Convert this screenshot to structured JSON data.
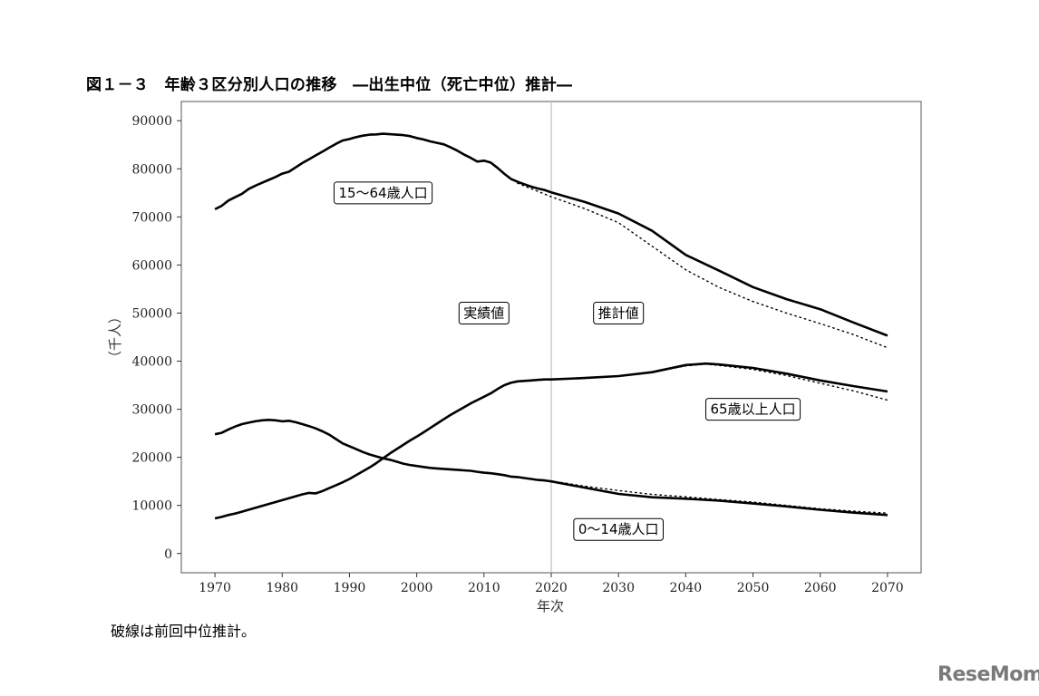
{
  "title": "図１－３　年齢３区分別人口の推移　―出生中位（死亡中位）推計―",
  "footnote": "破線は前回中位推計。",
  "logo_text": "ReseMom",
  "chart_data": {
    "type": "line",
    "xlabel": "年次",
    "ylabel": "（千人）",
    "xlim": [
      1965,
      2075
    ],
    "ylim": [
      -4000,
      94000
    ],
    "x_ticks": [
      1970,
      1980,
      1990,
      2000,
      2010,
      2020,
      2030,
      2040,
      2050,
      2060,
      2070
    ],
    "y_ticks": [
      0,
      10000,
      20000,
      30000,
      40000,
      50000,
      60000,
      70000,
      80000,
      90000
    ],
    "vline_x": 2020,
    "grid": false,
    "region_labels": [
      {
        "text": "実績値",
        "x": 2010,
        "y": 50000
      },
      {
        "text": "推計値",
        "x": 2030,
        "y": 50000
      }
    ],
    "series": [
      {
        "name": "15～64歳人口",
        "style": "solid",
        "label_pos": {
          "x": 1995,
          "y": 75000
        },
        "points": [
          [
            1970,
            71600
          ],
          [
            1971,
            72300
          ],
          [
            1972,
            73400
          ],
          [
            1973,
            74100
          ],
          [
            1974,
            74800
          ],
          [
            1975,
            75800
          ],
          [
            1976,
            76500
          ],
          [
            1977,
            77100
          ],
          [
            1978,
            77700
          ],
          [
            1979,
            78300
          ],
          [
            1980,
            79000
          ],
          [
            1981,
            79400
          ],
          [
            1982,
            80300
          ],
          [
            1983,
            81200
          ],
          [
            1984,
            82000
          ],
          [
            1985,
            82800
          ],
          [
            1986,
            83600
          ],
          [
            1987,
            84400
          ],
          [
            1988,
            85200
          ],
          [
            1989,
            85900
          ],
          [
            1990,
            86200
          ],
          [
            1991,
            86600
          ],
          [
            1992,
            86900
          ],
          [
            1993,
            87100
          ],
          [
            1994,
            87150
          ],
          [
            1995,
            87300
          ],
          [
            1996,
            87200
          ],
          [
            1997,
            87100
          ],
          [
            1998,
            87000
          ],
          [
            1999,
            86800
          ],
          [
            2000,
            86400
          ],
          [
            2001,
            86100
          ],
          [
            2002,
            85700
          ],
          [
            2003,
            85400
          ],
          [
            2004,
            85100
          ],
          [
            2005,
            84500
          ],
          [
            2006,
            83800
          ],
          [
            2007,
            83000
          ],
          [
            2008,
            82300
          ],
          [
            2009,
            81500
          ],
          [
            2010,
            81700
          ],
          [
            2011,
            81300
          ],
          [
            2012,
            80200
          ],
          [
            2013,
            79000
          ],
          [
            2014,
            77900
          ],
          [
            2015,
            77300
          ],
          [
            2016,
            76800
          ],
          [
            2017,
            76300
          ],
          [
            2018,
            75900
          ],
          [
            2019,
            75600
          ],
          [
            2020,
            75100
          ],
          [
            2025,
            73100
          ],
          [
            2030,
            70700
          ],
          [
            2035,
            67100
          ],
          [
            2040,
            62100
          ],
          [
            2045,
            58800
          ],
          [
            2050,
            55400
          ],
          [
            2055,
            52900
          ],
          [
            2060,
            50800
          ],
          [
            2065,
            48000
          ],
          [
            2070,
            45300
          ]
        ]
      },
      {
        "name": "65歳以上人口",
        "style": "solid",
        "label_pos": {
          "x": 2050,
          "y": 30000
        },
        "points": [
          [
            1970,
            7300
          ],
          [
            1971,
            7600
          ],
          [
            1972,
            8000
          ],
          [
            1973,
            8300
          ],
          [
            1974,
            8700
          ],
          [
            1975,
            9100
          ],
          [
            1976,
            9500
          ],
          [
            1977,
            9900
          ],
          [
            1978,
            10300
          ],
          [
            1979,
            10700
          ],
          [
            1980,
            11100
          ],
          [
            1981,
            11500
          ],
          [
            1982,
            11900
          ],
          [
            1983,
            12300
          ],
          [
            1984,
            12600
          ],
          [
            1985,
            12500
          ],
          [
            1986,
            13000
          ],
          [
            1987,
            13600
          ],
          [
            1988,
            14200
          ],
          [
            1989,
            14800
          ],
          [
            1990,
            15500
          ],
          [
            1991,
            16300
          ],
          [
            1992,
            17100
          ],
          [
            1993,
            17900
          ],
          [
            1994,
            18800
          ],
          [
            1995,
            19800
          ],
          [
            1996,
            20800
          ],
          [
            1997,
            21700
          ],
          [
            1998,
            22600
          ],
          [
            1999,
            23500
          ],
          [
            2000,
            24300
          ],
          [
            2001,
            25200
          ],
          [
            2002,
            26100
          ],
          [
            2003,
            27000
          ],
          [
            2004,
            27900
          ],
          [
            2005,
            28800
          ],
          [
            2006,
            29600
          ],
          [
            2007,
            30400
          ],
          [
            2008,
            31200
          ],
          [
            2009,
            31900
          ],
          [
            2010,
            32600
          ],
          [
            2011,
            33300
          ],
          [
            2012,
            34200
          ],
          [
            2013,
            35000
          ],
          [
            2014,
            35500
          ],
          [
            2015,
            35800
          ],
          [
            2016,
            35900
          ],
          [
            2017,
            36000
          ],
          [
            2018,
            36100
          ],
          [
            2019,
            36200
          ],
          [
            2020,
            36200
          ],
          [
            2025,
            36500
          ],
          [
            2030,
            36900
          ],
          [
            2035,
            37700
          ],
          [
            2040,
            39200
          ],
          [
            2043,
            39500
          ],
          [
            2045,
            39300
          ],
          [
            2050,
            38600
          ],
          [
            2055,
            37400
          ],
          [
            2060,
            36000
          ],
          [
            2065,
            34800
          ],
          [
            2070,
            33700
          ]
        ]
      },
      {
        "name": "0～14歳人口",
        "style": "solid",
        "label_pos": {
          "x": 2030,
          "y": 5000
        },
        "points": [
          [
            1970,
            24800
          ],
          [
            1971,
            25100
          ],
          [
            1972,
            25800
          ],
          [
            1973,
            26400
          ],
          [
            1974,
            26900
          ],
          [
            1975,
            27200
          ],
          [
            1976,
            27500
          ],
          [
            1977,
            27700
          ],
          [
            1978,
            27800
          ],
          [
            1979,
            27700
          ],
          [
            1980,
            27500
          ],
          [
            1981,
            27600
          ],
          [
            1982,
            27300
          ],
          [
            1983,
            26900
          ],
          [
            1984,
            26500
          ],
          [
            1985,
            26000
          ],
          [
            1986,
            25400
          ],
          [
            1987,
            24700
          ],
          [
            1988,
            23800
          ],
          [
            1989,
            22900
          ],
          [
            1990,
            22300
          ],
          [
            1991,
            21700
          ],
          [
            1992,
            21100
          ],
          [
            1993,
            20600
          ],
          [
            1994,
            20200
          ],
          [
            1995,
            19800
          ],
          [
            1996,
            19500
          ],
          [
            1997,
            19100
          ],
          [
            1998,
            18700
          ],
          [
            1999,
            18400
          ],
          [
            2000,
            18200
          ],
          [
            2001,
            18000
          ],
          [
            2002,
            17800
          ],
          [
            2003,
            17700
          ],
          [
            2004,
            17600
          ],
          [
            2005,
            17500
          ],
          [
            2006,
            17400
          ],
          [
            2007,
            17300
          ],
          [
            2008,
            17200
          ],
          [
            2009,
            17000
          ],
          [
            2010,
            16800
          ],
          [
            2011,
            16700
          ],
          [
            2012,
            16500
          ],
          [
            2013,
            16300
          ],
          [
            2014,
            16000
          ],
          [
            2015,
            15900
          ],
          [
            2016,
            15700
          ],
          [
            2017,
            15500
          ],
          [
            2018,
            15300
          ],
          [
            2019,
            15200
          ],
          [
            2020,
            15000
          ],
          [
            2025,
            13700
          ],
          [
            2030,
            12400
          ],
          [
            2035,
            11700
          ],
          [
            2040,
            11400
          ],
          [
            2045,
            11000
          ],
          [
            2050,
            10400
          ],
          [
            2055,
            9800
          ],
          [
            2060,
            9100
          ],
          [
            2065,
            8500
          ],
          [
            2070,
            8000
          ]
        ]
      },
      {
        "name": "",
        "style": "dotted",
        "points": [
          [
            2015,
            77000
          ],
          [
            2020,
            74200
          ],
          [
            2025,
            71700
          ],
          [
            2030,
            68800
          ],
          [
            2035,
            63900
          ],
          [
            2040,
            59000
          ],
          [
            2045,
            55300
          ],
          [
            2050,
            52400
          ],
          [
            2055,
            50000
          ],
          [
            2060,
            47800
          ],
          [
            2065,
            45500
          ],
          [
            2070,
            42800
          ]
        ]
      },
      {
        "name": "",
        "style": "dotted",
        "points": [
          [
            2020,
            36200
          ],
          [
            2025,
            36600
          ],
          [
            2030,
            36900
          ],
          [
            2035,
            37700
          ],
          [
            2040,
            39000
          ],
          [
            2043,
            39400
          ],
          [
            2045,
            39100
          ],
          [
            2050,
            38300
          ],
          [
            2055,
            37000
          ],
          [
            2060,
            35400
          ],
          [
            2065,
            33800
          ],
          [
            2070,
            31900
          ]
        ]
      },
      {
        "name": "",
        "style": "dotted",
        "points": [
          [
            2020,
            15100
          ],
          [
            2025,
            14000
          ],
          [
            2030,
            13100
          ],
          [
            2035,
            12300
          ],
          [
            2040,
            11800
          ],
          [
            2045,
            11200
          ],
          [
            2050,
            10700
          ],
          [
            2055,
            10000
          ],
          [
            2060,
            9300
          ],
          [
            2065,
            8800
          ],
          [
            2070,
            8400
          ]
        ]
      }
    ]
  }
}
